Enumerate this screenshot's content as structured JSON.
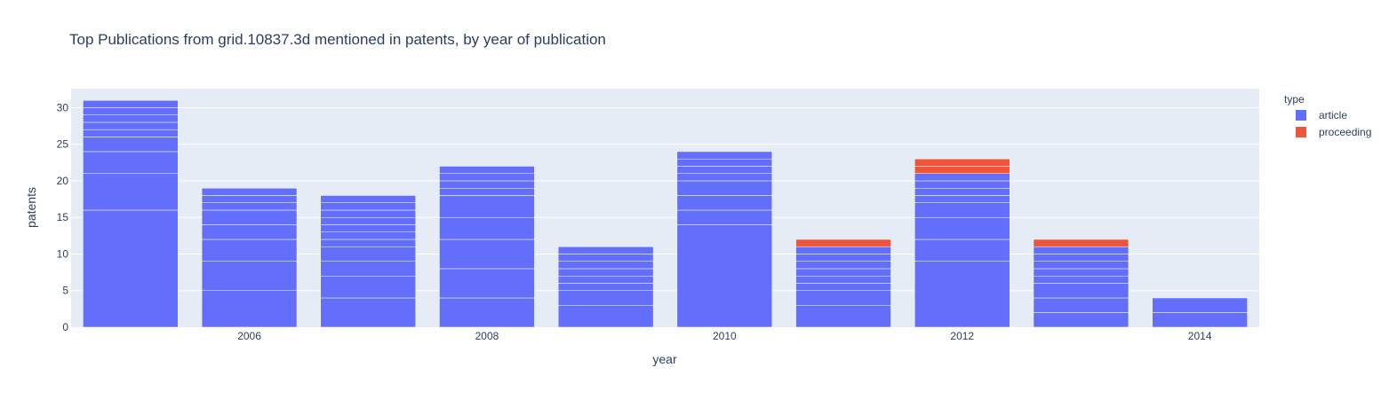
{
  "chart_data": {
    "type": "bar",
    "title": "Top Publications from grid.10837.3d mentioned in patents, by year of publication",
    "xlabel": "year",
    "ylabel": "patents",
    "barmode": "stack",
    "ylim": [
      0,
      32.6
    ],
    "y_ticks": [
      0,
      5,
      10,
      15,
      20,
      25,
      30
    ],
    "x_ticks": [
      2006,
      2008,
      2010,
      2012,
      2014
    ],
    "categories": [
      2005,
      2006,
      2007,
      2008,
      2009,
      2010,
      2011,
      2012,
      2013,
      2014
    ],
    "series": [
      {
        "name": "article",
        "color": "#636efa",
        "totals": [
          31,
          19,
          18,
          22,
          11,
          24,
          11,
          21,
          11,
          4
        ],
        "segments": [
          [
            16,
            5,
            3,
            2,
            1,
            1,
            1,
            1,
            1
          ],
          [
            5,
            4,
            3,
            2,
            2,
            1,
            1,
            1
          ],
          [
            4,
            3,
            2,
            2,
            1,
            1,
            1,
            1,
            1,
            1,
            1
          ],
          [
            4,
            4,
            4,
            3,
            3,
            1,
            1,
            1,
            1
          ],
          [
            3,
            2,
            1,
            1,
            1,
            1,
            1,
            1
          ],
          [
            14,
            2,
            2,
            2,
            1,
            1,
            1,
            1
          ],
          [
            3,
            2,
            1,
            1,
            1,
            1,
            1,
            1
          ],
          [
            9,
            3,
            3,
            2,
            1,
            1,
            1,
            1
          ],
          [
            2,
            2,
            2,
            1,
            1,
            1,
            1,
            1
          ],
          [
            2,
            2
          ]
        ]
      },
      {
        "name": "proceeding",
        "color": "#ef553b",
        "totals": [
          0,
          0,
          0,
          0,
          0,
          0,
          1,
          2,
          1,
          0
        ],
        "segments": [
          [],
          [],
          [],
          [],
          [],
          [],
          [
            1
          ],
          [
            1,
            1
          ],
          [
            1
          ],
          []
        ]
      }
    ],
    "legend": {
      "title": "type",
      "position": "right"
    },
    "grid": true
  }
}
